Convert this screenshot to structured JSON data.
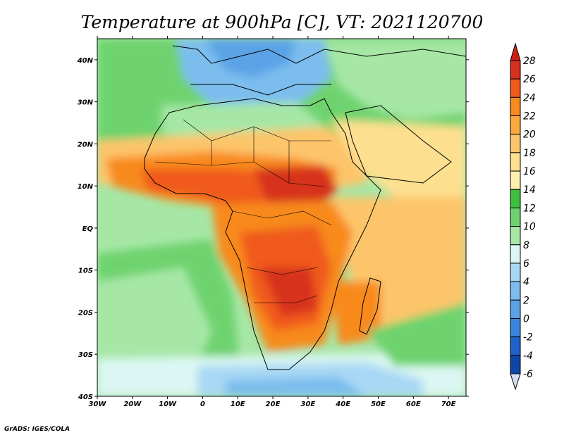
{
  "chart_data": {
    "type": "heatmap",
    "title": "Temperature at 900hPa [C], VT: 2021120700",
    "variable": "Temperature",
    "units": "C",
    "level": "900hPa",
    "valid_time": "2021120700",
    "x_ticks": [
      "30W",
      "20W",
      "10W",
      "0",
      "10E",
      "20E",
      "30E",
      "40E",
      "50E",
      "60E",
      "70E"
    ],
    "y_ticks": [
      "40N",
      "30N",
      "20N",
      "10N",
      "EQ",
      "10S",
      "20S",
      "30S",
      "40S"
    ],
    "lon_range": [
      -30,
      75
    ],
    "lat_range": [
      -40,
      45
    ],
    "colorbar": {
      "labels": [
        "28",
        "26",
        "24",
        "22",
        "20",
        "18",
        "16",
        "14",
        "12",
        "10",
        "8",
        "6",
        "4",
        "2",
        "0",
        "-2",
        "-4",
        "-6"
      ],
      "colors": [
        "#d7301f",
        "#f05a1c",
        "#f88a1e",
        "#fba83c",
        "#fdc56a",
        "#fde08f",
        "#fff0b0",
        "#3fbf3f",
        "#6ed36e",
        "#a6e7a6",
        "#dcf7f3",
        "#a9d8f4",
        "#7cbdee",
        "#5aa3e6",
        "#3b86dd",
        "#1f62c9",
        "#1045a8",
        "#0a237a"
      ]
    },
    "fields": {
      "ocean_south": "#a6e7a6",
      "ocean_north": "#3fbf3f",
      "med": "#7cbdee",
      "sahara": "#a6e7a6",
      "sahel": "#f88a1e",
      "hot_core": "#d7301f",
      "south_africa": "#f05a1c",
      "warm": "#fdc56a",
      "cool_band": "#5aa3e6",
      "ocean_far_south": "#7cbdee",
      "arabia": "#fde08f",
      "indian": "#fdc56a"
    }
  },
  "credit": "GrADS: IGES/COLA"
}
